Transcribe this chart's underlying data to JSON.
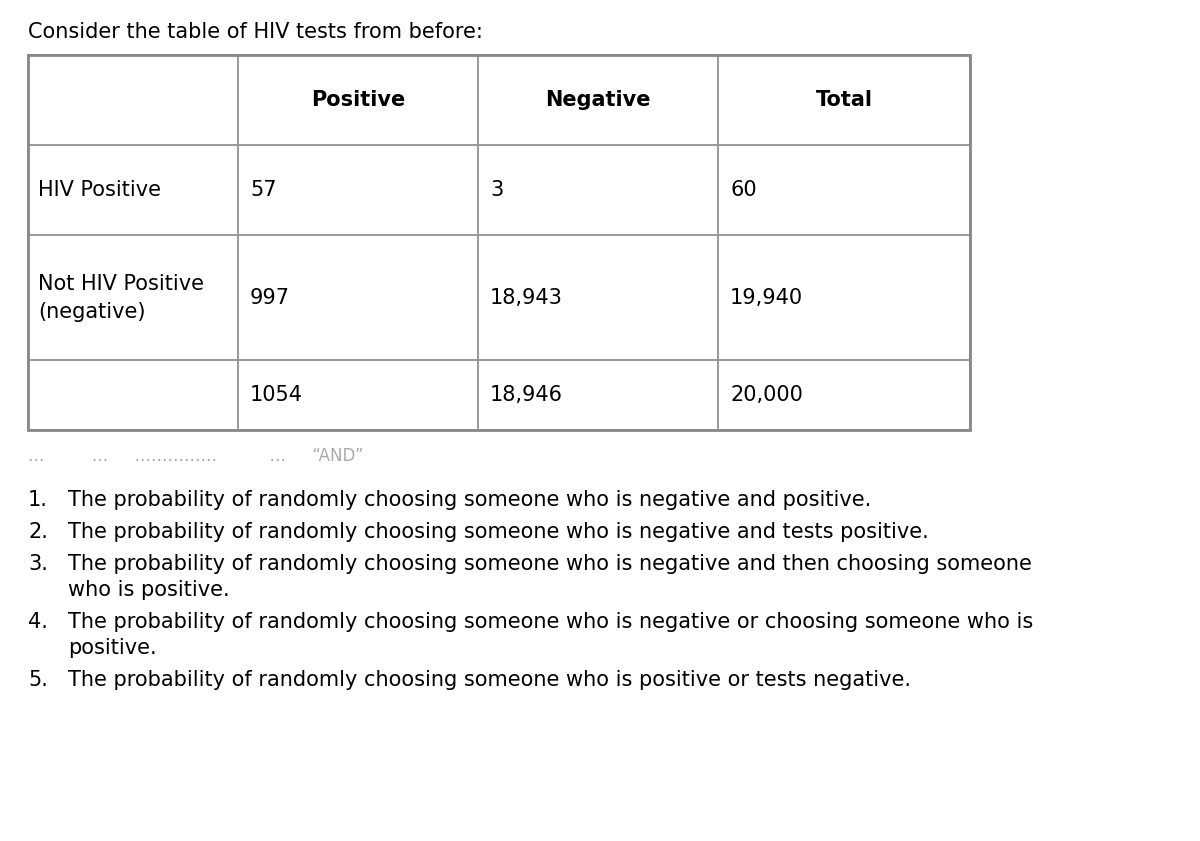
{
  "page_title": "Consider the table of HIV tests from before:",
  "table": {
    "col_headers": [
      "",
      "Positive",
      "Negative",
      "Total"
    ],
    "rows": [
      [
        "HIV Positive",
        "57",
        "3",
        "60"
      ],
      [
        "Not HIV Positive\n(negative)",
        "997",
        "18,943",
        "19,940"
      ],
      [
        "",
        "1054",
        "18,946",
        "20,000"
      ]
    ]
  },
  "questions": [
    "The probability of randomly choosing someone who is negative and positive.",
    "The probability of randomly choosing someone who is negative and tests positive.",
    "The probability of randomly choosing someone who is negative and then choosing someone\nwho is positive.",
    "The probability of randomly choosing someone who is negative or choosing someone who is\npositive.",
    "The probability of randomly choosing someone who is positive or tests negative."
  ],
  "dotted_line": "⋯        ⋯    ⋯⋯⋯⋯         ⋯    “AND”",
  "bg_color": "#ffffff",
  "text_color": "#000000",
  "border_color": "#999999",
  "header_font_size": 15,
  "cell_font_size": 15,
  "question_font_size": 15,
  "title_font_size": 15
}
